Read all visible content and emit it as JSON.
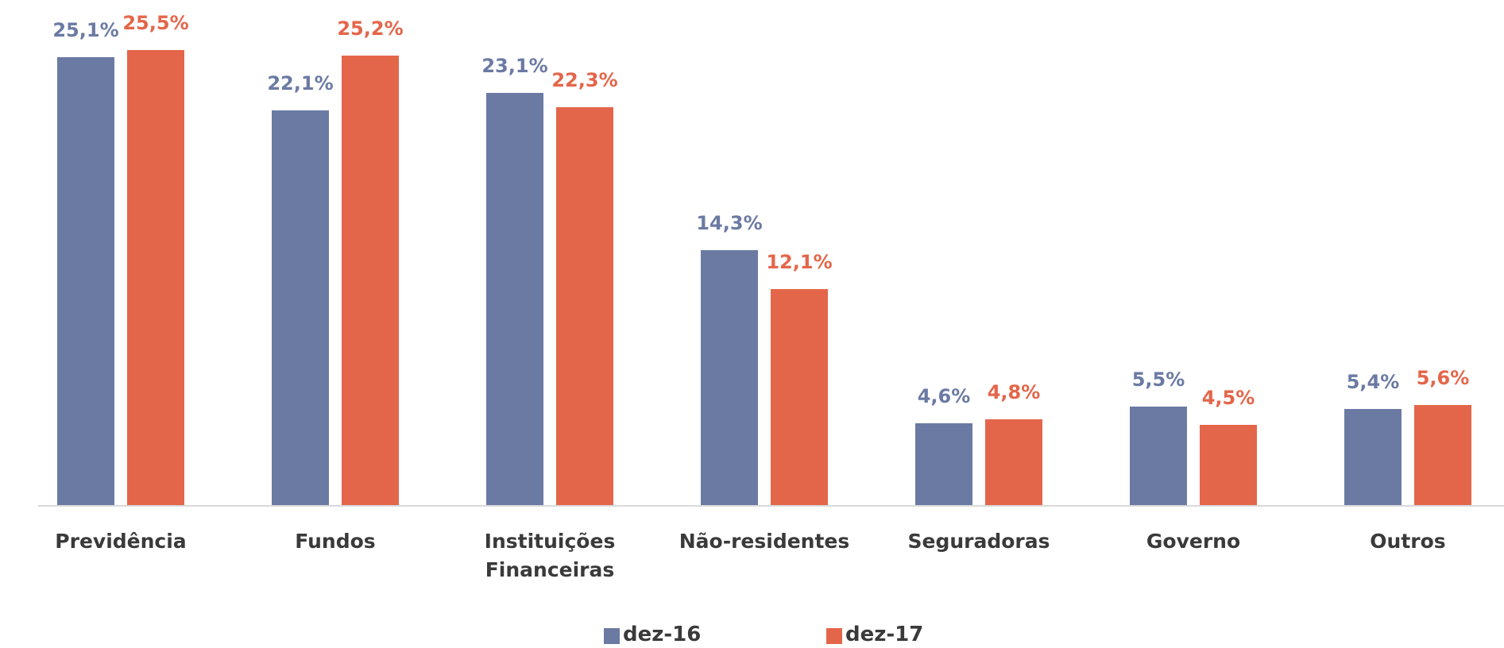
{
  "chart_data": {
    "type": "bar",
    "categories": [
      "Previdência",
      "Fundos",
      "Instituições Financeiras",
      "Não-residentes",
      "Seguradoras",
      "Governo",
      "Outros"
    ],
    "series": [
      {
        "name": "dez-16",
        "color": "#6b7aa3",
        "values": [
          25.1,
          22.1,
          23.1,
          14.3,
          4.6,
          5.5,
          5.4
        ],
        "value_labels": [
          "25,1%",
          "22,1%",
          "23,1%",
          "14,3%",
          "4,6%",
          "5,5%",
          "5,4%"
        ]
      },
      {
        "name": "dez-17",
        "color": "#e4664a",
        "values": [
          25.5,
          25.2,
          22.3,
          12.1,
          4.8,
          4.5,
          5.6
        ],
        "value_labels": [
          "25,5%",
          "25,2%",
          "22,3%",
          "12,1%",
          "4,8%",
          "4,5%",
          "5,6%"
        ]
      }
    ]
  }
}
